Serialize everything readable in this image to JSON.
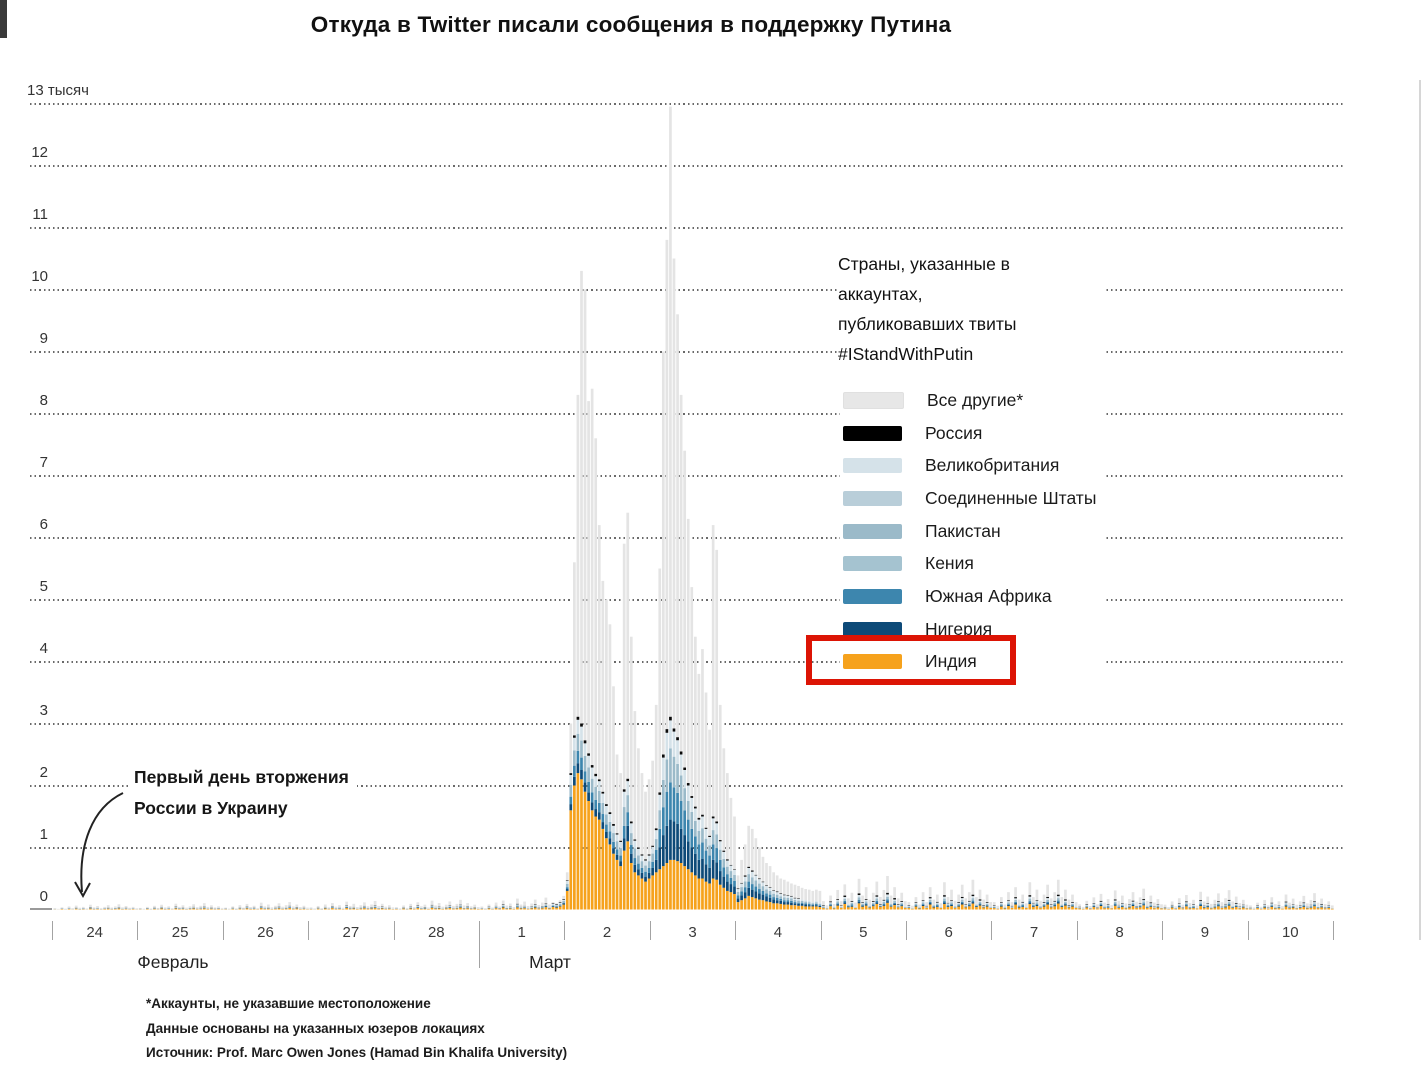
{
  "title": "Откуда в Twitter писали сообщения в поддержку Путина",
  "y_axis": {
    "tick_labels": [
      "0",
      "1",
      "2",
      "3",
      "4",
      "5",
      "6",
      "7",
      "8",
      "9",
      "10",
      "11",
      "12",
      "13 тысяч"
    ],
    "unit": "тысяч",
    "ylim": [
      0,
      13
    ]
  },
  "x_axis": {
    "february": {
      "label": "Февраль",
      "days": [
        "24",
        "25",
        "26",
        "27",
        "28"
      ]
    },
    "march": {
      "label": "Март",
      "days": [
        "1",
        "2",
        "3",
        "4",
        "5",
        "6",
        "7",
        "8",
        "9",
        "10"
      ]
    }
  },
  "legend": {
    "title_lines": [
      "Страны, указанные в",
      "аккаунтах,",
      "публиковавших твиты",
      "#IStandWithPutin"
    ],
    "items": [
      {
        "label": "Все другие*",
        "color": "#e7e7e7",
        "highlighted": false
      },
      {
        "label": "Россия",
        "color": "#000000",
        "highlighted": false
      },
      {
        "label": "Великобритания",
        "color": "#d5e2e9",
        "highlighted": false
      },
      {
        "label": "Соединенные Штаты",
        "color": "#b9ced9",
        "highlighted": false
      },
      {
        "label": "Пакистан",
        "color": "#9bbac9",
        "highlighted": false
      },
      {
        "label": "Кения",
        "color": "#a5c3d0",
        "highlighted": false
      },
      {
        "label": "Южная Африка",
        "color": "#3d86ae",
        "highlighted": false
      },
      {
        "label": "Нигерия",
        "color": "#0d4a78",
        "highlighted": false
      },
      {
        "label": "Индия",
        "color": "#f6a21c",
        "highlighted": true
      }
    ],
    "highlight_box_color": "#dc1405"
  },
  "annotation": {
    "lines": [
      "Первый день вторжения",
      "России в Украину"
    ]
  },
  "footnotes": [
    "*Аккаунты, не указавшие местоположение",
    "Данные основаны на указанных юзеров локациях",
    "Источник: Prof. Marc Owen Jones (Hamad Bin Khalifa University)"
  ],
  "chart_data": {
    "type": "bar",
    "subtype": "stacked-hourly",
    "title": "Откуда в Twitter писали сообщения в поддержку Путина",
    "unit": "thousand tweets per hour",
    "ylim": [
      0,
      13
    ],
    "grid": "dotted-horizontal",
    "legend_position": "right-inside",
    "hours_total": 360,
    "start_label": "24 Февраль",
    "end_label": "10 Март",
    "bar_value_format": [
      "total",
      "india",
      "nigeria",
      "south_africa",
      "uk_us_pakistan_kenya",
      "russia"
    ],
    "colors": {
      "all_others": "#e4e4e4",
      "russia": "#0b0b0b",
      "uk": "#d5e2e9",
      "us": "#b9ced9",
      "pakistan": "#9bbac9",
      "kenya": "#a5c3d0",
      "south_africa": "#3d86ae",
      "nigeria": "#0d4a78",
      "india": "#f6a21c"
    },
    "quiet_pattern": [
      [
        0.03,
        0.006,
        0,
        0.002,
        0.006,
        0.002
      ],
      [
        0.015,
        0.003,
        0,
        0,
        0.004,
        0
      ],
      [
        0.05,
        0.012,
        0.003,
        0.003,
        0.008,
        0.003
      ],
      [
        0.02,
        0.004,
        0,
        0.002,
        0.004,
        0
      ],
      [
        0.07,
        0.014,
        0.005,
        0.003,
        0.012,
        0.003
      ],
      [
        0.03,
        0.006,
        0,
        0,
        0.007,
        0.002
      ],
      [
        0.09,
        0.02,
        0.006,
        0.005,
        0.014,
        0.005
      ],
      [
        0.04,
        0.008,
        0.002,
        0.003,
        0.007,
        0
      ],
      [
        0.06,
        0.01,
        0.003,
        0.005,
        0.01,
        0.003
      ],
      [
        0.025,
        0.006,
        0,
        0,
        0.004,
        0
      ],
      [
        0.11,
        0.022,
        0.006,
        0.006,
        0.018,
        0.006
      ],
      [
        0.05,
        0.01,
        0.003,
        0.003,
        0.009,
        0.002
      ],
      [
        0.08,
        0.014,
        0.005,
        0.003,
        0.012,
        0.003
      ],
      [
        0.035,
        0.007,
        0,
        0.002,
        0.006,
        0
      ],
      [
        0.06,
        0.012,
        0.003,
        0.003,
        0.009,
        0.003
      ],
      [
        0.1,
        0.02,
        0.006,
        0.005,
        0.015,
        0.005
      ],
      [
        0.045,
        0.009,
        0.002,
        0,
        0.007,
        0.002
      ],
      [
        0.07,
        0.013,
        0.003,
        0.005,
        0.011,
        0.003
      ],
      [
        0.12,
        0.024,
        0.006,
        0.006,
        0.018,
        0.006
      ],
      [
        0.05,
        0.01,
        0.002,
        0.003,
        0.008,
        0
      ],
      [
        0.08,
        0.016,
        0.005,
        0.003,
        0.012,
        0.005
      ],
      [
        0.04,
        0.008,
        0,
        0.002,
        0.006,
        0.002
      ],
      [
        0.06,
        0.012,
        0.003,
        0.003,
        0.009,
        0.003
      ],
      [
        0.03,
        0.006,
        0,
        0,
        0.006,
        0
      ]
    ],
    "quiet_day_scales": [
      0.7,
      0.85,
      1.0,
      1.15,
      1.3,
      1.6,
      1,
      1,
      1,
      4.5,
      4.0,
      4.0,
      2.8,
      2.6,
      2.2
    ],
    "event": {
      "start_hour": 140,
      "bars": [
        [
          0.12,
          0.04,
          0.01,
          0.01,
          0.03,
          0.01
        ],
        [
          0.1,
          0.03,
          0.01,
          0.01,
          0.03,
          0.01
        ],
        [
          0.15,
          0.05,
          0.01,
          0.01,
          0.04,
          0.01
        ],
        [
          0.22,
          0.08,
          0.02,
          0.01,
          0.05,
          0.01
        ],
        [
          0.6,
          0.3,
          0.03,
          0.03,
          0.1,
          0.01
        ],
        [
          3.0,
          1.6,
          0.1,
          0.12,
          0.35,
          0.03
        ],
        [
          5.6,
          2.0,
          0.14,
          0.18,
          0.45,
          0.04
        ],
        [
          8.3,
          2.2,
          0.16,
          0.2,
          0.5,
          0.05
        ],
        [
          10.3,
          2.1,
          0.15,
          0.2,
          0.5,
          0.05
        ],
        [
          10.0,
          1.9,
          0.15,
          0.18,
          0.45,
          0.05
        ],
        [
          8.2,
          1.75,
          0.14,
          0.17,
          0.42,
          0.04
        ],
        [
          8.4,
          1.6,
          0.13,
          0.16,
          0.4,
          0.04
        ],
        [
          7.6,
          1.5,
          0.12,
          0.15,
          0.38,
          0.04
        ],
        [
          6.2,
          1.45,
          0.12,
          0.15,
          0.35,
          0.03
        ],
        [
          5.3,
          1.3,
          0.11,
          0.13,
          0.33,
          0.03
        ],
        [
          5.0,
          1.15,
          0.1,
          0.12,
          0.3,
          0.03
        ],
        [
          4.6,
          1.05,
          0.1,
          0.11,
          0.28,
          0.03
        ],
        [
          3.6,
          0.9,
          0.09,
          0.1,
          0.26,
          0.03
        ],
        [
          2.5,
          0.8,
          0.08,
          0.09,
          0.24,
          0.02
        ],
        [
          2.2,
          0.7,
          0.08,
          0.09,
          0.22,
          0.02
        ],
        [
          5.9,
          0.95,
          0.2,
          0.2,
          0.55,
          0.04
        ],
        [
          6.4,
          1.1,
          0.25,
          0.22,
          0.5,
          0.04
        ],
        [
          4.4,
          0.75,
          0.15,
          0.14,
          0.35,
          0.03
        ],
        [
          3.2,
          0.6,
          0.12,
          0.11,
          0.28,
          0.02
        ],
        [
          2.6,
          0.55,
          0.1,
          0.09,
          0.24,
          0.02
        ],
        [
          2.2,
          0.5,
          0.09,
          0.08,
          0.2,
          0.02
        ],
        [
          1.9,
          0.45,
          0.08,
          0.08,
          0.18,
          0.02
        ],
        [
          2.1,
          0.5,
          0.09,
          0.08,
          0.2,
          0.02
        ],
        [
          2.4,
          0.55,
          0.12,
          0.1,
          0.24,
          0.02
        ],
        [
          3.3,
          0.6,
          0.2,
          0.16,
          0.32,
          0.03
        ],
        [
          5.5,
          0.65,
          0.35,
          0.3,
          0.55,
          0.04
        ],
        [
          9.0,
          0.7,
          0.5,
          0.45,
          0.8,
          0.05
        ],
        [
          10.8,
          0.75,
          0.6,
          0.55,
          0.95,
          0.06
        ],
        [
          12.95,
          0.8,
          0.65,
          0.6,
          1.0,
          0.06
        ],
        [
          10.5,
          0.8,
          0.62,
          0.55,
          0.9,
          0.05
        ],
        [
          9.6,
          0.78,
          0.6,
          0.5,
          0.85,
          0.05
        ],
        [
          8.3,
          0.75,
          0.55,
          0.45,
          0.75,
          0.05
        ],
        [
          7.4,
          0.7,
          0.5,
          0.4,
          0.65,
          0.04
        ],
        [
          6.3,
          0.65,
          0.45,
          0.35,
          0.55,
          0.04
        ],
        [
          5.2,
          0.6,
          0.4,
          0.3,
          0.5,
          0.03
        ],
        [
          4.4,
          0.55,
          0.35,
          0.28,
          0.45,
          0.03
        ],
        [
          3.8,
          0.5,
          0.3,
          0.25,
          0.4,
          0.03
        ],
        [
          4.2,
          0.5,
          0.32,
          0.26,
          0.42,
          0.03
        ],
        [
          3.5,
          0.45,
          0.28,
          0.22,
          0.35,
          0.02
        ],
        [
          2.9,
          0.42,
          0.25,
          0.2,
          0.3,
          0.02
        ],
        [
          6.2,
          0.5,
          0.3,
          0.25,
          0.42,
          0.03
        ],
        [
          5.8,
          0.48,
          0.28,
          0.23,
          0.4,
          0.03
        ],
        [
          3.3,
          0.4,
          0.22,
          0.18,
          0.3,
          0.02
        ],
        [
          2.6,
          0.35,
          0.18,
          0.15,
          0.25,
          0.02
        ],
        [
          2.2,
          0.3,
          0.15,
          0.12,
          0.22,
          0.02
        ],
        [
          1.8,
          0.28,
          0.13,
          0.1,
          0.2,
          0.01
        ],
        [
          1.5,
          0.25,
          0.12,
          0.09,
          0.18,
          0.01
        ],
        [
          0.55,
          0.12,
          0.06,
          0.05,
          0.1,
          0.01
        ],
        [
          0.8,
          0.15,
          0.08,
          0.06,
          0.13,
          0.01
        ],
        [
          1.05,
          0.18,
          0.1,
          0.08,
          0.17,
          0.02
        ],
        [
          1.35,
          0.22,
          0.13,
          0.1,
          0.22,
          0.02
        ],
        [
          1.3,
          0.2,
          0.12,
          0.09,
          0.2,
          0.02
        ],
        [
          1.15,
          0.18,
          0.11,
          0.08,
          0.18,
          0.01
        ],
        [
          1.0,
          0.16,
          0.1,
          0.07,
          0.16,
          0.01
        ],
        [
          0.85,
          0.15,
          0.09,
          0.06,
          0.14,
          0.01
        ],
        [
          0.75,
          0.13,
          0.08,
          0.05,
          0.12,
          0.01
        ],
        [
          0.7,
          0.12,
          0.07,
          0.05,
          0.11,
          0.01
        ],
        [
          0.6,
          0.1,
          0.06,
          0.04,
          0.1,
          0.01
        ],
        [
          0.55,
          0.1,
          0.05,
          0.04,
          0.09,
          0.01
        ],
        [
          0.5,
          0.09,
          0.05,
          0.03,
          0.08,
          0.01
        ],
        [
          0.48,
          0.08,
          0.04,
          0.03,
          0.08,
          0.01
        ],
        [
          0.45,
          0.08,
          0.04,
          0.03,
          0.07,
          0.01
        ],
        [
          0.42,
          0.07,
          0.04,
          0.03,
          0.07,
          0.01
        ],
        [
          0.4,
          0.07,
          0.03,
          0.02,
          0.06,
          0.01
        ],
        [
          0.38,
          0.06,
          0.03,
          0.02,
          0.06,
          0.01
        ],
        [
          0.35,
          0.06,
          0.03,
          0.02,
          0.05,
          0
        ],
        [
          0.33,
          0.05,
          0.03,
          0.02,
          0.05,
          0
        ],
        [
          0.32,
          0.05,
          0.02,
          0.02,
          0.05,
          0
        ],
        [
          0.3,
          0.05,
          0.02,
          0.01,
          0.04,
          0
        ],
        [
          0.32,
          0.05,
          0.02,
          0.02,
          0.05,
          0
        ],
        [
          0.3,
          0.04,
          0.02,
          0.01,
          0.04,
          0
        ]
      ]
    }
  }
}
